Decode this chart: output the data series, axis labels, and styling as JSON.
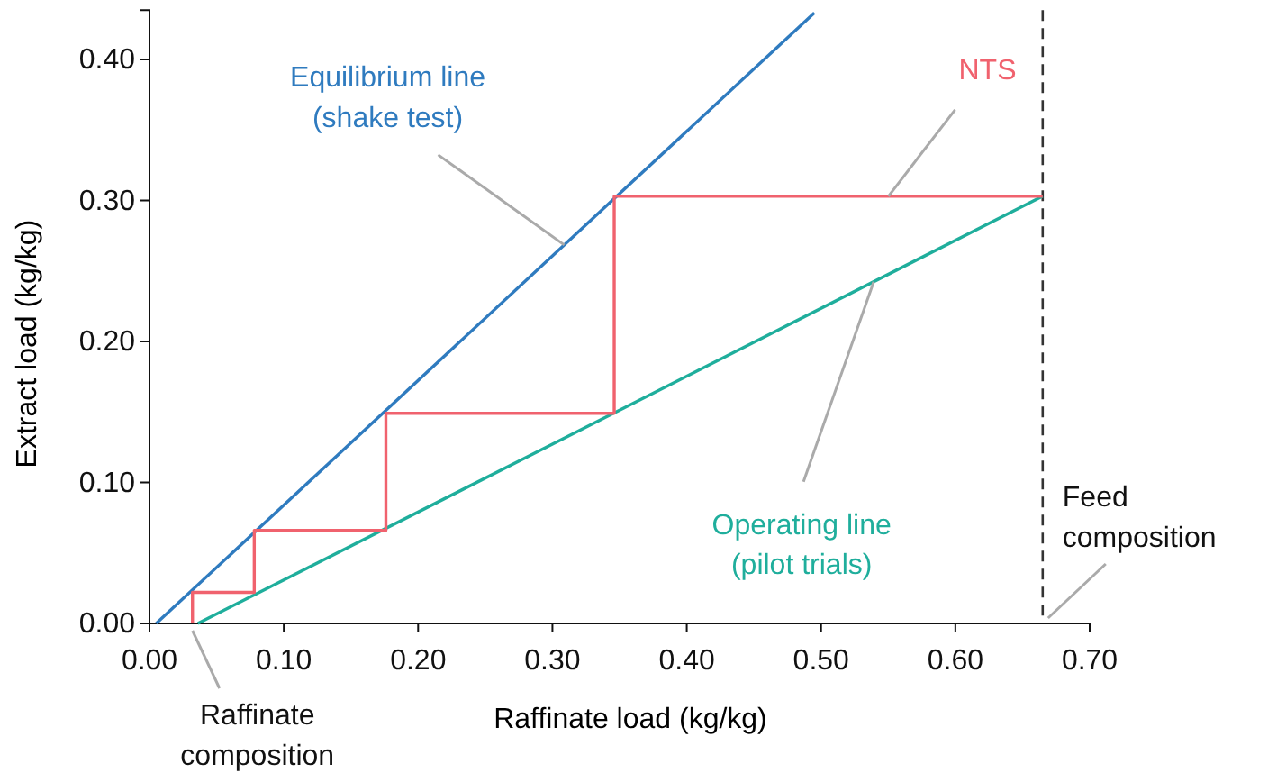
{
  "chart_data": {
    "type": "line",
    "xlabel": "Raffinate load (kg/kg)",
    "ylabel": "Extract load (kg/kg)",
    "xlim": [
      0,
      0.7
    ],
    "ylim": [
      0,
      0.435
    ],
    "xticks": [
      {
        "value": 0,
        "label": "0.00"
      },
      {
        "value": 0.1,
        "label": "0.10"
      },
      {
        "value": 0.2,
        "label": "0.20"
      },
      {
        "value": 0.3,
        "label": "0.30"
      },
      {
        "value": 0.4,
        "label": "0.40"
      },
      {
        "value": 0.5,
        "label": "0.50"
      },
      {
        "value": 0.6,
        "label": "0.60"
      },
      {
        "value": 0.7,
        "label": "0.70"
      }
    ],
    "yticks": [
      {
        "value": 0,
        "label": "0.00"
      },
      {
        "value": 0.1,
        "label": "0.10"
      },
      {
        "value": 0.2,
        "label": "0.20"
      },
      {
        "value": 0.3,
        "label": "0.30"
      },
      {
        "value": 0.4,
        "label": "0.40"
      }
    ],
    "grid": false,
    "marker": "none",
    "line_style": "solid",
    "series": [
      {
        "name": "Equilibrium line (shake test)",
        "color": "#2f7bbf",
        "x": [
          0.005,
          0.495
        ],
        "values": [
          0,
          0.433
        ]
      },
      {
        "name": "Operating line (pilot trials)",
        "color": "#1fae9c",
        "x": [
          0.036,
          0.665
        ],
        "values": [
          0,
          0.303
        ]
      },
      {
        "name": "NTS",
        "color": "#f0626e",
        "x": [
          0.665,
          0.346,
          0.346,
          0.176,
          0.176,
          0.078,
          0.078,
          0.032,
          0.032
        ],
        "values": [
          0.303,
          0.303,
          0.149,
          0.149,
          0.066,
          0.066,
          0.022,
          0.022,
          0
        ]
      }
    ],
    "ref_lines": [
      {
        "axis": "x",
        "value": 0.665,
        "label": "Feed composition",
        "color": "#333333",
        "line_style": "dashed"
      }
    ],
    "annotations": [
      {
        "text": "Raffinate composition",
        "x": 0.032,
        "y": 0
      }
    ]
  }
}
